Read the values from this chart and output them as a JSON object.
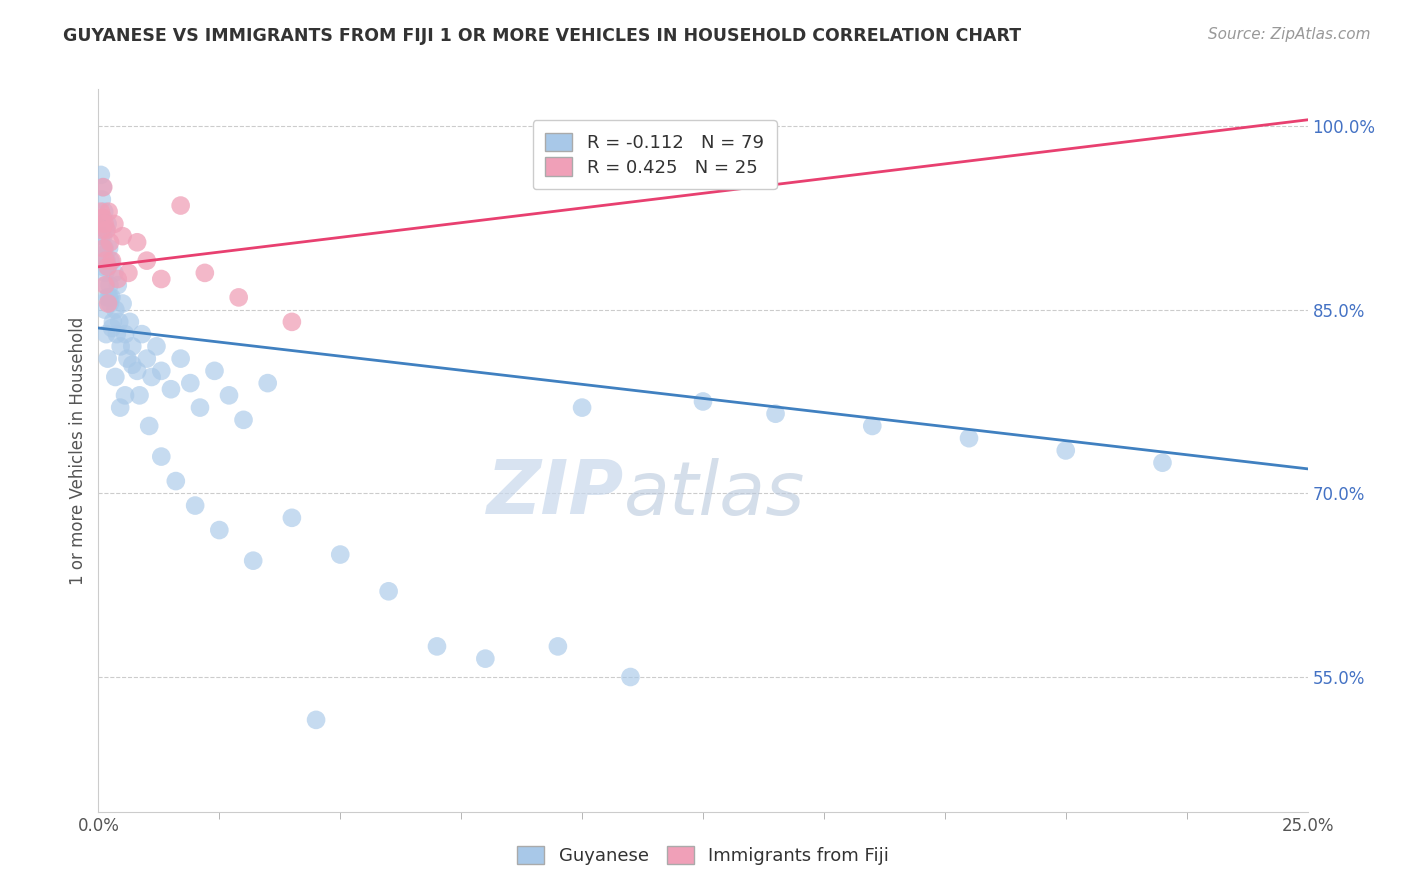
{
  "title": "GUYANESE VS IMMIGRANTS FROM FIJI 1 OR MORE VEHICLES IN HOUSEHOLD CORRELATION CHART",
  "source": "Source: ZipAtlas.com",
  "xlabel_blue": "Guyanese",
  "xlabel_pink": "Immigrants from Fiji",
  "ylabel": "1 or more Vehicles in Household",
  "xmin": 0.0,
  "xmax": 25.0,
  "ymin": 44.0,
  "ymax": 103.0,
  "yticks": [
    55.0,
    70.0,
    85.0,
    100.0
  ],
  "legend_r_blue": "R = -0.112",
  "legend_n_blue": "N = 79",
  "legend_r_pink": "R = 0.425",
  "legend_n_pink": "N = 25",
  "blue_color": "#A8C8E8",
  "pink_color": "#F0A0B8",
  "blue_line_color": "#4080C0",
  "pink_line_color": "#E84070",
  "blue_line_y0": 83.5,
  "blue_line_y25": 72.0,
  "pink_line_y0": 88.5,
  "pink_line_y25": 100.5,
  "blue_x": [
    0.05,
    0.07,
    0.08,
    0.09,
    0.1,
    0.11,
    0.12,
    0.13,
    0.14,
    0.15,
    0.16,
    0.17,
    0.18,
    0.19,
    0.2,
    0.21,
    0.22,
    0.23,
    0.24,
    0.25,
    0.27,
    0.3,
    0.33,
    0.35,
    0.38,
    0.4,
    0.43,
    0.46,
    0.5,
    0.55,
    0.6,
    0.65,
    0.7,
    0.8,
    0.9,
    1.0,
    1.1,
    1.2,
    1.3,
    1.5,
    1.7,
    1.9,
    2.1,
    2.4,
    2.7,
    3.0,
    3.5,
    4.0,
    5.0,
    6.0,
    7.0,
    8.0,
    9.5,
    11.0,
    12.5,
    14.0,
    16.0,
    18.0,
    20.0,
    22.0,
    0.06,
    0.09,
    0.13,
    0.16,
    0.19,
    0.23,
    0.28,
    0.35,
    0.45,
    0.55,
    0.7,
    0.85,
    1.05,
    1.3,
    1.6,
    2.0,
    2.5,
    3.2,
    4.5,
    10.0
  ],
  "blue_y": [
    96.0,
    94.0,
    92.0,
    95.0,
    91.0,
    89.5,
    93.0,
    90.0,
    88.0,
    91.5,
    87.0,
    89.0,
    86.0,
    92.0,
    88.5,
    86.0,
    90.0,
    87.0,
    85.5,
    89.0,
    86.0,
    84.0,
    88.0,
    85.0,
    83.0,
    87.0,
    84.0,
    82.0,
    85.5,
    83.0,
    81.0,
    84.0,
    82.0,
    80.0,
    83.0,
    81.0,
    79.5,
    82.0,
    80.0,
    78.5,
    81.0,
    79.0,
    77.0,
    80.0,
    78.0,
    76.0,
    79.0,
    68.0,
    65.0,
    62.0,
    57.5,
    56.5,
    57.5,
    55.0,
    77.5,
    76.5,
    75.5,
    74.5,
    73.5,
    72.5,
    91.0,
    88.5,
    85.0,
    83.0,
    81.0,
    86.0,
    83.5,
    79.5,
    77.0,
    78.0,
    80.5,
    78.0,
    75.5,
    73.0,
    71.0,
    69.0,
    67.0,
    64.5,
    51.5,
    77.0
  ],
  "pink_x": [
    0.05,
    0.07,
    0.09,
    0.11,
    0.13,
    0.15,
    0.17,
    0.19,
    0.21,
    0.24,
    0.28,
    0.33,
    0.4,
    0.5,
    0.62,
    0.8,
    1.0,
    1.3,
    1.7,
    2.2,
    2.9,
    4.0,
    0.1,
    0.14,
    0.2
  ],
  "pink_y": [
    93.0,
    91.5,
    92.5,
    90.0,
    92.0,
    89.0,
    91.5,
    88.5,
    93.0,
    90.5,
    89.0,
    92.0,
    87.5,
    91.0,
    88.0,
    90.5,
    89.0,
    87.5,
    93.5,
    88.0,
    86.0,
    84.0,
    95.0,
    87.0,
    85.5
  ],
  "watermark_zip": "ZIP",
  "watermark_atlas": "atlas",
  "background_color": "#FFFFFF",
  "grid_color": "#CCCCCC"
}
